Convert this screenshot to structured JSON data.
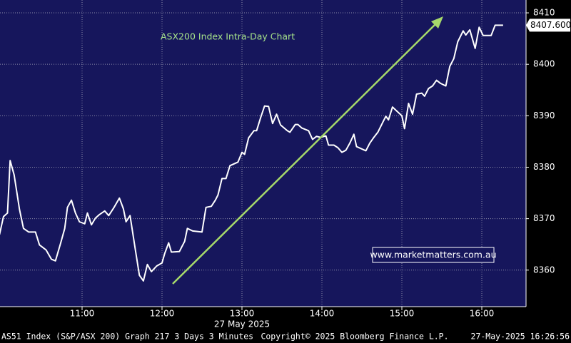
{
  "chart_data": {
    "type": "line",
    "title": "ASX200 Index Intra-Day Chart",
    "subtitle": "www.marketmatters.com.au",
    "date_label": "27 May 2025",
    "footer_left": "AS51 Index (S&P/ASX 200) Graph 217 3 Days 3 Minutes",
    "footer_center": "Copyright© 2025 Bloomberg Finance L.P.",
    "footer_right": "27-May-2025 16:26:56",
    "xlim": [
      598.4,
      993.2
    ],
    "xticks": [
      {
        "value": 660,
        "label": "11:00"
      },
      {
        "value": 720,
        "label": "12:00"
      },
      {
        "value": 780,
        "label": "13:00"
      },
      {
        "value": 840,
        "label": "14:00"
      },
      {
        "value": 900,
        "label": "15:00"
      },
      {
        "value": 960,
        "label": "16:00"
      }
    ],
    "ylim": [
      8352.9,
      8412.5
    ],
    "yticks": [
      8360,
      8370,
      8380,
      8390,
      8400,
      8410
    ],
    "grid": true,
    "last_price": {
      "value": 8407.6,
      "label": "8407.600"
    },
    "series": [
      {
        "name": "AS51 Index",
        "color": "#ffffff",
        "x": [
          598,
          601,
          604,
          606,
          609,
          613,
          616,
          620,
          625,
          628,
          633,
          637,
          640,
          644,
          647,
          649,
          652,
          655,
          658,
          662,
          664,
          667,
          670,
          673,
          677,
          680,
          684,
          688,
          691,
          693,
          696,
          700,
          703,
          706,
          709,
          712,
          716,
          720,
          722,
          725,
          727,
          733,
          737,
          739,
          743,
          750,
          753,
          757,
          760,
          762,
          765,
          768,
          771,
          777,
          780,
          782,
          785,
          789,
          791,
          794,
          797,
          800,
          803,
          806,
          809,
          814,
          816,
          820,
          822,
          825,
          830,
          833,
          836,
          839,
          843,
          845,
          849,
          852,
          855,
          858,
          861,
          864,
          866,
          873,
          876,
          879,
          882,
          886,
          888,
          890,
          893,
          900,
          902,
          905,
          908,
          911,
          915,
          917,
          920,
          923,
          926,
          929,
          933,
          936,
          939,
          942,
          946,
          948,
          951,
          955,
          958,
          961,
          967,
          970,
          976
        ],
        "values": [
          8366.9,
          8370.4,
          8371.1,
          8381.3,
          8378.5,
          8371.8,
          8368.1,
          8367.4,
          8367.4,
          8364.9,
          8363.9,
          8362.1,
          8361.8,
          8365.3,
          8368.1,
          8372.2,
          8373.6,
          8371.1,
          8369.4,
          8369.0,
          8371.1,
          8368.8,
          8370.1,
          8370.8,
          8371.5,
          8370.6,
          8372.2,
          8374.0,
          8371.9,
          8369.4,
          8370.6,
          8363.9,
          8359.0,
          8357.9,
          8361.1,
          8359.7,
          8360.8,
          8361.4,
          8363.2,
          8365.3,
          8363.5,
          8363.6,
          8365.6,
          8368.1,
          8367.6,
          8367.4,
          8372.2,
          8372.4,
          8373.6,
          8374.6,
          8377.8,
          8377.8,
          8380.3,
          8381.0,
          8382.9,
          8382.5,
          8385.7,
          8387.1,
          8387.1,
          8389.6,
          8391.9,
          8391.8,
          8388.5,
          8390.3,
          8388.2,
          8387.1,
          8386.8,
          8388.3,
          8388.3,
          8387.6,
          8387.1,
          8385.4,
          8386.0,
          8385.8,
          8386.1,
          8384.3,
          8384.3,
          8383.8,
          8382.9,
          8383.3,
          8384.7,
          8386.4,
          8384.0,
          8383.2,
          8384.7,
          8385.8,
          8386.8,
          8388.9,
          8389.9,
          8389.2,
          8391.7,
          8390.0,
          8387.5,
          8392.4,
          8390.3,
          8394.2,
          8394.4,
          8393.8,
          8395.3,
          8395.8,
          8396.9,
          8396.3,
          8395.8,
          8399.6,
          8401.1,
          8404.4,
          8406.5,
          8405.7,
          8406.7,
          8403.1,
          8407.2,
          8405.6,
          8405.6,
          8407.6,
          8407.6
        ]
      }
    ]
  }
}
